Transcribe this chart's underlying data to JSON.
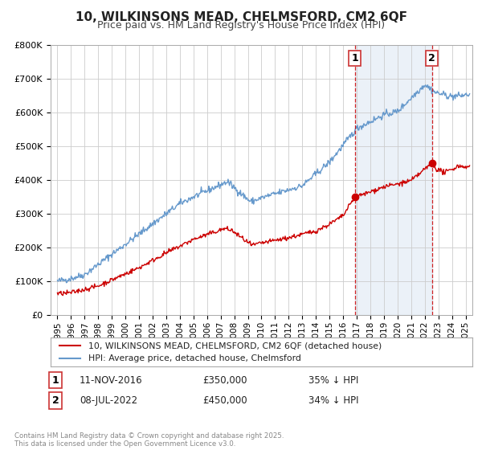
{
  "title": "10, WILKINSONS MEAD, CHELMSFORD, CM2 6QF",
  "subtitle": "Price paid vs. HM Land Registry's House Price Index (HPI)",
  "ylim": [
    0,
    800000
  ],
  "yticks": [
    0,
    100000,
    200000,
    300000,
    400000,
    500000,
    600000,
    700000,
    800000
  ],
  "ytick_labels": [
    "£0",
    "£100K",
    "£200K",
    "£300K",
    "£400K",
    "£500K",
    "£600K",
    "£700K",
    "£800K"
  ],
  "xlim_start": 1994.5,
  "xlim_end": 2025.5,
  "xticks": [
    1995,
    1996,
    1997,
    1998,
    1999,
    2000,
    2001,
    2002,
    2003,
    2004,
    2005,
    2006,
    2007,
    2008,
    2009,
    2010,
    2011,
    2012,
    2013,
    2014,
    2015,
    2016,
    2017,
    2018,
    2019,
    2020,
    2021,
    2022,
    2023,
    2024,
    2025
  ],
  "legend_label_red": "10, WILKINSONS MEAD, CHELMSFORD, CM2 6QF (detached house)",
  "legend_label_blue": "HPI: Average price, detached house, Chelmsford",
  "marker1_x": 2016.86,
  "marker1_y_red": 350000,
  "marker1_date": "11-NOV-2016",
  "marker1_price": "£350,000",
  "marker1_hpi": "35% ↓ HPI",
  "marker2_x": 2022.52,
  "marker2_y_red": 450000,
  "marker2_date": "08-JUL-2022",
  "marker2_price": "£450,000",
  "marker2_hpi": "34% ↓ HPI",
  "red_color": "#cc0000",
  "blue_color": "#6699cc",
  "vline_color": "#cc0000",
  "background_color": "#ffffff",
  "grid_color": "#cccccc",
  "title_fontsize": 11,
  "subtitle_fontsize": 9,
  "footnote": "Contains HM Land Registry data © Crown copyright and database right 2025.\nThis data is licensed under the Open Government Licence v3.0."
}
